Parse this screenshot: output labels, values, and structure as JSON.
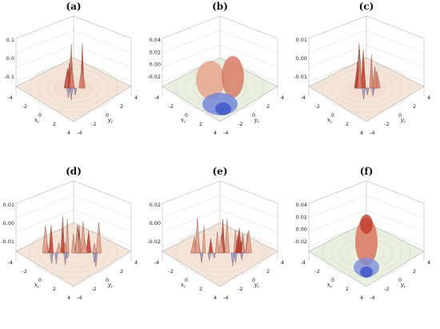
{
  "chart_data": [
    {
      "panel": "(a)",
      "type": "surface",
      "zticks": [
        "0.1",
        "0.0",
        "-0.1"
      ],
      "xticks": [
        "-4",
        "-2",
        "0",
        "2",
        "4"
      ],
      "yticks": [
        "4",
        "2",
        "0",
        "-2",
        "-4"
      ],
      "xlabel": "x",
      "xsub": "r",
      "ylabel": "y",
      "ysub": "r",
      "style": "central-spikes-with-rings",
      "ztop": 0.1,
      "zbot": -0.1
    },
    {
      "panel": "(b)",
      "type": "surface",
      "zticks": [
        "0.04",
        "0.02",
        "0.00",
        "-0.02"
      ],
      "xticks": [
        "-4",
        "-2",
        "0",
        "2",
        "4"
      ],
      "yticks": [
        "4",
        "2",
        "0",
        "-2",
        "-4"
      ],
      "xlabel": "x",
      "xsub": "r",
      "ylabel": "y",
      "ysub": "r",
      "style": "smooth-peaks-and-dips",
      "ztop": 0.04,
      "zbot": -0.02
    },
    {
      "panel": "(c)",
      "type": "surface",
      "zticks": [
        "0.01",
        "0.00",
        "-0.01"
      ],
      "xticks": [
        "-4",
        "-2",
        "0",
        "2",
        "4"
      ],
      "yticks": [
        "4",
        "2",
        "0",
        "-2",
        "-4"
      ],
      "xlabel": "x",
      "xsub": "r",
      "ylabel": "y",
      "ysub": "r",
      "style": "central-spikes-with-rings",
      "ztop": 0.01,
      "zbot": -0.01
    },
    {
      "panel": "(d)",
      "type": "surface",
      "zticks": [
        "0.01",
        "0.00",
        "-0.01"
      ],
      "xticks": [
        "-4",
        "-2",
        "0",
        "2",
        "4"
      ],
      "yticks": [
        "4",
        "2",
        "0",
        "-2",
        "-4"
      ],
      "xlabel": "x",
      "xsub": "r",
      "ylabel": "y",
      "ysub": "r",
      "style": "many-spikes",
      "ztop": 0.01,
      "zbot": -0.01
    },
    {
      "panel": "(e)",
      "type": "surface",
      "zticks": [
        "0.02",
        "0.00",
        "-0.02"
      ],
      "xticks": [
        "-4",
        "-2",
        "0",
        "2",
        "4"
      ],
      "yticks": [
        "4",
        "2",
        "0",
        "-2",
        "-4"
      ],
      "xlabel": "x",
      "xsub": "r",
      "ylabel": "y",
      "ysub": "r",
      "style": "many-spikes",
      "ztop": 0.02,
      "zbot": -0.02
    },
    {
      "panel": "(f)",
      "type": "surface",
      "zticks": [
        "0.04",
        "0.02",
        "0.00",
        "-0.02"
      ],
      "xticks": [
        "-4",
        "-2",
        "0",
        "2",
        "4"
      ],
      "yticks": [
        "4",
        "2",
        "0",
        "-2",
        "-4"
      ],
      "xlabel": "x",
      "xsub": "r",
      "ylabel": "y",
      "ysub": "r",
      "style": "single-peak-with-dip",
      "ztop": 0.04,
      "zbot": -0.02
    }
  ],
  "colors": {
    "peak": "#c0392b",
    "mid": "#f2dccf",
    "neutral": "#e7eadf",
    "trough": "#3a53c9",
    "tick_label": "#222222"
  }
}
